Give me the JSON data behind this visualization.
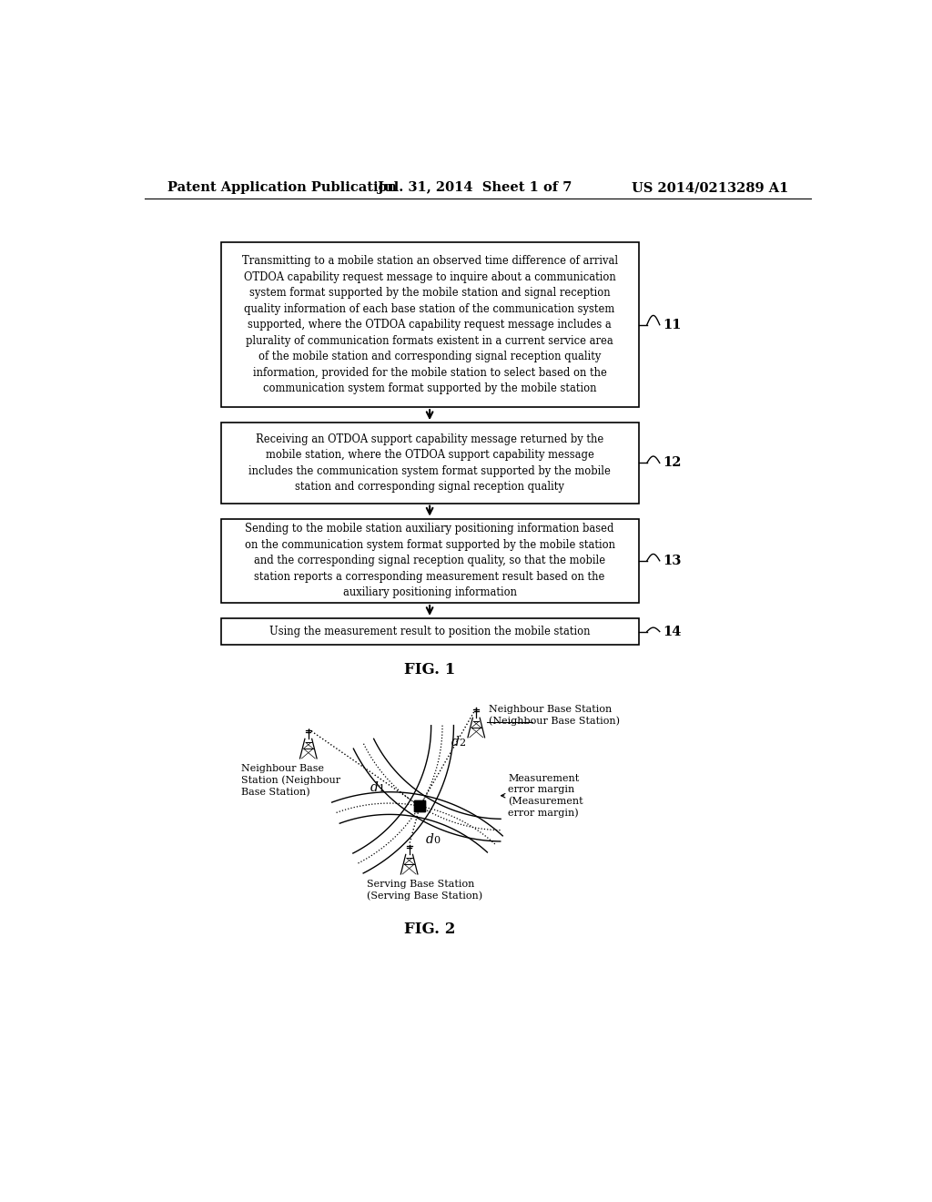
{
  "bg_color": "#ffffff",
  "header_left": "Patent Application Publication",
  "header_mid": "Jul. 31, 2014  Sheet 1 of 7",
  "header_right": "US 2014/0213289 A1",
  "box1_text": "Transmitting to a mobile station an observed time difference of arrival\nOTDOA capability request message to inquire about a communication\nsystem format supported by the mobile station and signal reception\nquality information of each base station of the communication system\nsupported, where the OTDOA capability request message includes a\nplurality of communication formats existent in a current service area\nof the mobile station and corresponding signal reception quality\ninformation, provided for the mobile station to select based on the\ncommunication system format supported by the mobile station",
  "box2_text": "Receiving an OTDOA support capability message returned by the\nmobile station, where the OTDOA support capability message\nincludes the communication system format supported by the mobile\nstation and corresponding signal reception quality",
  "box3_text": "Sending to the mobile station auxiliary positioning information based\non the communication system format supported by the mobile station\nand the corresponding signal reception quality, so that the mobile\nstation reports a corresponding measurement result based on the\nauxiliary positioning information",
  "box4_text": "Using the measurement result to position the mobile station",
  "label11": "11",
  "label12": "12",
  "label13": "13",
  "label14": "14",
  "fig1_label": "FIG. 1",
  "fig2_label": "FIG. 2",
  "nb1_label": "Neighbour Base\nStation (Neighbour\nBase Station)",
  "nb2_label": "Neighbour Base Station\n(Neighbour Base Station)",
  "sb_label": "Serving Base Station\n(Serving Base Station)",
  "measurement_label": "Measurement\nerror margin\n(Measurement\nerror margin)",
  "d0_label": "d",
  "d0_sub": "0",
  "d1_label": "d",
  "d1_sub": "1",
  "d2_label": "d",
  "d2_sub": "2"
}
